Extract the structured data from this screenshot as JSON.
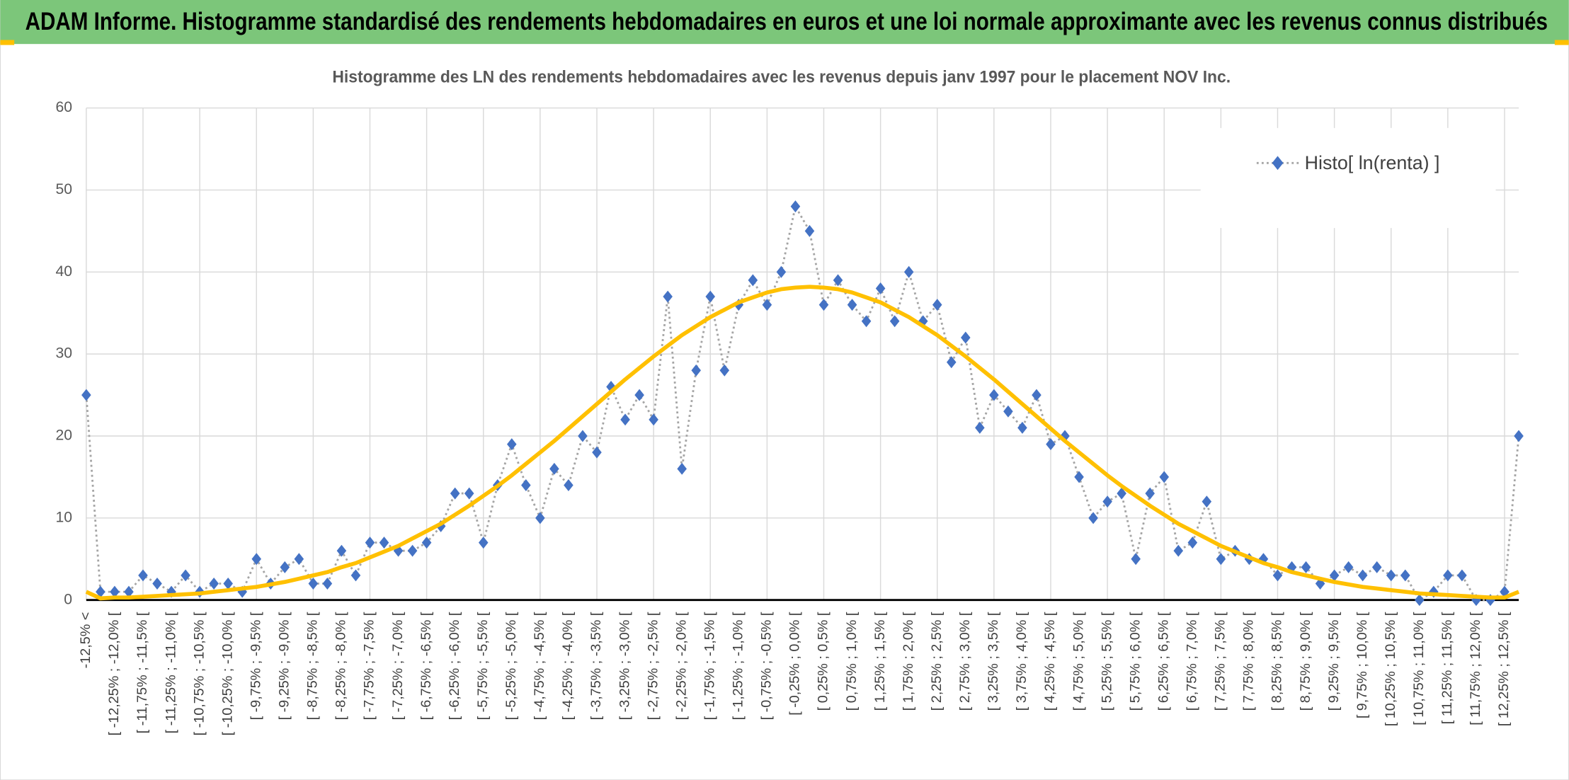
{
  "header": {
    "title": "ADAM Informe. Histogramme standardisé des rendements hebdomadaires en euros et une loi normale approximante avec les revenus connus distribués"
  },
  "chart_data": {
    "type": "line",
    "title": "Histogramme des LN des rendements hebdomadaires avec les revenus depuis janv 1997 pour le placement NOV Inc.",
    "categories": [
      "-12,5% <",
      null,
      "[ -12,25% ; -12,0% [",
      null,
      "[ -11,75% ; -11,5% [",
      null,
      "[ -11,25% ; -11,0% [",
      null,
      "[ -10,75% ; -10,5% [",
      null,
      "[ -10,25% ; -10,0% [",
      null,
      "[ -9,75% ; -9,5% [",
      null,
      "[ -9,25% ; -9,0% [",
      null,
      "[ -8,75% ; -8,5% [",
      null,
      "[ -8,25% ; -8,0% [",
      null,
      "[ -7,75% ; -7,5% [",
      null,
      "[ -7,25% ; -7,0% [",
      null,
      "[ -6,75% ; -6,5% [",
      null,
      "[ -6,25% ; -6,0% [",
      null,
      "[ -5,75% ; -5,5% [",
      null,
      "[ -5,25% ; -5,0% [",
      null,
      "[ -4,75% ; -4,5% [",
      null,
      "[ -4,25% ; -4,0% [",
      null,
      "[ -3,75% ; -3,5% [",
      null,
      "[ -3,25% ; -3,0% [",
      null,
      "[ -2,75% ; -2,5% [",
      null,
      "[ -2,25% ; -2,0% [",
      null,
      "[ -1,75% ; -1,5% [",
      null,
      "[ -1,25% ; -1,0% [",
      null,
      "[ -0,75% ; -0,5% [",
      null,
      "[ -0,25% ; 0,0% [",
      null,
      "[ 0,25% ; 0,5% [",
      null,
      "[ 0,75% ; 1,0% [",
      null,
      "[ 1,25% ; 1,5% [",
      null,
      "[ 1,75% ; 2,0% [",
      null,
      "[ 2,25% ; 2,5% [",
      null,
      "[ 2,75% ; 3,0% [",
      null,
      "[ 3,25% ; 3,5% [",
      null,
      "[ 3,75% ; 4,0% [",
      null,
      "[ 4,25% ; 4,5% [",
      null,
      "[ 4,75% ; 5,0% [",
      null,
      "[ 5,25% ; 5,5% [",
      null,
      "[ 5,75% ; 6,0% [",
      null,
      "[ 6,25% ; 6,5% [",
      null,
      "[ 6,75% ; 7,0% [",
      null,
      "[ 7,25% ; 7,5% [",
      null,
      "[ 7,75% ; 8,0% [",
      null,
      "[ 8,25% ; 8,5% [",
      null,
      "[ 8,75% ; 9,0% [",
      null,
      "[ 9,25% ; 9,5% [",
      null,
      "[ 9,75% ; 10,0% [",
      null,
      "[ 10,25% ; 10,5% [",
      null,
      "[ 10,75% ; 11,0% [",
      null,
      "[ 11,25% ; 11,5% [",
      null,
      "[ 11,75% ; 12,0% [",
      null,
      "[ 12,25% ; 12,5% [",
      null
    ],
    "series": [
      {
        "name": "Histo[ ln(renta) ]",
        "color": "#4472c4",
        "line_color": "#a5a5a5",
        "values": [
          25,
          1,
          1,
          1,
          3,
          2,
          1,
          3,
          1,
          2,
          2,
          1,
          5,
          2,
          4,
          5,
          2,
          2,
          6,
          3,
          7,
          7,
          6,
          6,
          7,
          9,
          13,
          13,
          7,
          14,
          19,
          14,
          10,
          16,
          14,
          20,
          18,
          26,
          22,
          25,
          22,
          37,
          16,
          28,
          37,
          28,
          36,
          39,
          36,
          40,
          48,
          45,
          36,
          39,
          36,
          34,
          38,
          34,
          40,
          34,
          36,
          29,
          32,
          21,
          25,
          23,
          21,
          25,
          19,
          20,
          15,
          10,
          12,
          13,
          5,
          13,
          15,
          6,
          7,
          12,
          5,
          6,
          5,
          5,
          3,
          4,
          4,
          2,
          3,
          4,
          3,
          4,
          3,
          3,
          0,
          1,
          3,
          3,
          0,
          0,
          1,
          20
        ]
      },
      {
        "color": "#ffc000",
        "values": [
          1.0,
          0.2,
          0.3,
          0.3,
          0.4,
          0.5,
          0.6,
          0.7,
          0.8,
          1.0,
          1.2,
          1.4,
          1.6,
          1.9,
          2.2,
          2.6,
          3.0,
          3.4,
          4.0,
          4.5,
          5.2,
          5.9,
          6.6,
          7.5,
          8.4,
          9.3,
          10.4,
          11.5,
          12.7,
          13.9,
          15.2,
          16.6,
          18.0,
          19.4,
          20.9,
          22.4,
          23.9,
          25.4,
          26.9,
          28.3,
          29.7,
          31.0,
          32.3,
          33.4,
          34.5,
          35.4,
          36.3,
          36.9,
          37.5,
          37.9,
          38.1,
          38.2,
          38.1,
          37.9,
          37.5,
          36.9,
          36.3,
          35.4,
          34.5,
          33.4,
          32.3,
          31.0,
          29.7,
          28.3,
          26.9,
          25.4,
          23.9,
          22.4,
          20.9,
          19.4,
          18.0,
          16.6,
          15.2,
          13.9,
          12.7,
          11.5,
          10.4,
          9.3,
          8.4,
          7.5,
          6.6,
          5.9,
          5.2,
          4.5,
          4.0,
          3.4,
          3.0,
          2.6,
          2.2,
          1.9,
          1.6,
          1.4,
          1.2,
          1.0,
          0.8,
          0.7,
          0.6,
          0.5,
          0.4,
          0.3,
          0.3,
          1.0
        ]
      }
    ],
    "ylim": [
      0,
      60
    ],
    "yticks": [
      0,
      10,
      20,
      30,
      40,
      50,
      60
    ],
    "grid": true,
    "legend": "upper right"
  }
}
